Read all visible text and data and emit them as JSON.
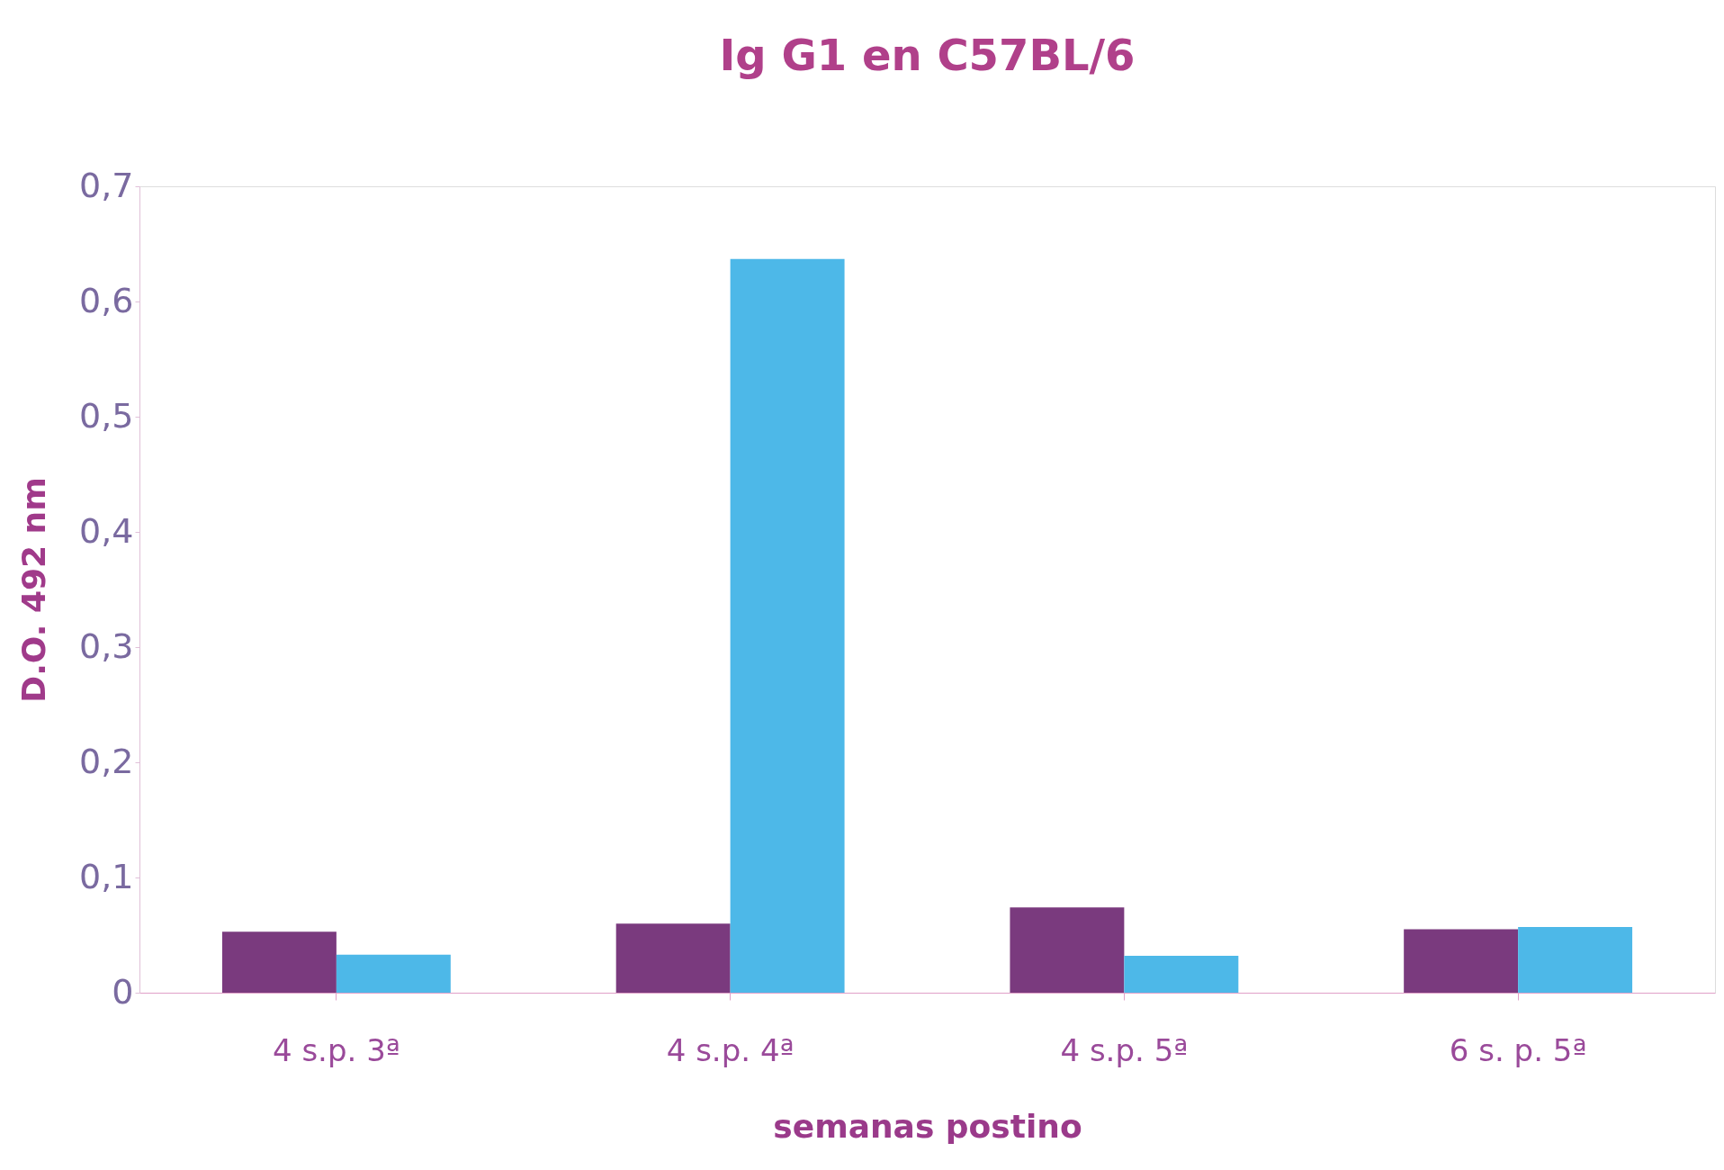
{
  "chart_data": {
    "type": "bar",
    "title": "Ig G1 en C57BL/6",
    "xlabel": "semanas postino",
    "ylabel": "D.O. 492 nm",
    "categories": [
      "4 s.p. 3ª",
      "4 s.p. 4ª",
      "4 s.p. 5ª",
      "6 s. p. 5ª"
    ],
    "series": [
      {
        "color": "#7a3a7e",
        "values": [
          0.053,
          0.06,
          0.074,
          0.055
        ]
      },
      {
        "color": "#4db8e8",
        "values": [
          0.033,
          0.637,
          0.032,
          0.057
        ]
      }
    ],
    "ylim": [
      0,
      0.7
    ],
    "yticks": [
      {
        "value": 0,
        "label": "0"
      },
      {
        "value": 0.1,
        "label": "0,1"
      },
      {
        "value": 0.2,
        "label": "0,2"
      },
      {
        "value": 0.3,
        "label": "0,3"
      },
      {
        "value": 0.4,
        "label": "0,4"
      },
      {
        "value": 0.5,
        "label": "0,5"
      },
      {
        "value": 0.6,
        "label": "0,6"
      },
      {
        "value": 0.7,
        "label": "0,7"
      }
    ],
    "grid": false,
    "legend": false
  }
}
